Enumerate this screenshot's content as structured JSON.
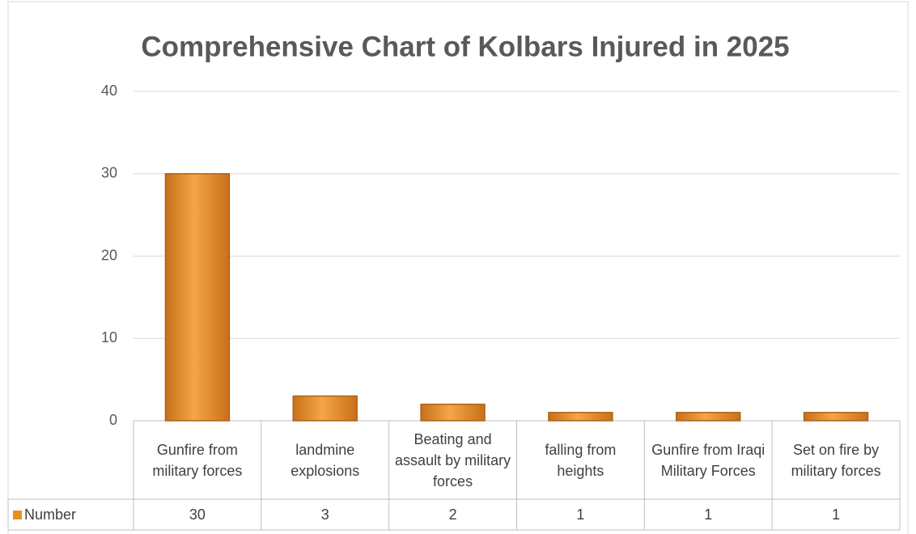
{
  "chart_data": {
    "type": "bar",
    "title": "Comprehensive Chart of Kolbars Injured in 2025",
    "categories": [
      "Gunfire from military forces",
      "landmine explosions",
      "Beating and assault by military forces",
      "falling from heights",
      "Gunfire from Iraqi Military Forces",
      "Set on fire by military forces"
    ],
    "series": [
      {
        "name": "Number",
        "color": "#e8901f",
        "values": [
          30,
          3,
          2,
          1,
          1,
          1
        ]
      }
    ],
    "ylim": [
      0,
      40
    ],
    "yticks": [
      0,
      10,
      20,
      30,
      40
    ],
    "grid": true
  }
}
